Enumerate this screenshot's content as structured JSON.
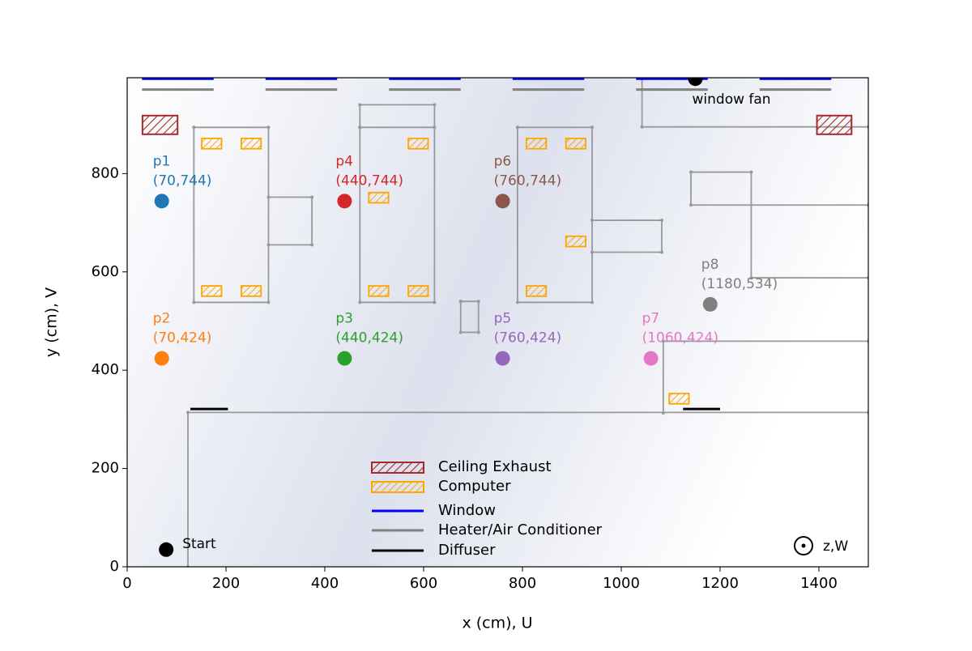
{
  "chart_data": {
    "type": "floorplan",
    "xlabel": "x (cm), U",
    "ylabel": "y (cm), V",
    "xlim": [
      0,
      1500
    ],
    "ylim": [
      0,
      995
    ],
    "xticks": [
      0,
      200,
      400,
      600,
      800,
      1000,
      1200,
      1400
    ],
    "yticks": [
      0,
      200,
      400,
      600,
      800
    ],
    "points": [
      {
        "name": "p1",
        "label": "(70,744)",
        "x": 70,
        "y": 744,
        "color": "#1f77b4"
      },
      {
        "name": "p2",
        "label": "(70,424)",
        "x": 70,
        "y": 424,
        "color": "#ff7f0e"
      },
      {
        "name": "p3",
        "label": "(440,424)",
        "x": 440,
        "y": 424,
        "color": "#2ca02c"
      },
      {
        "name": "p4",
        "label": "(440,744)",
        "x": 440,
        "y": 744,
        "color": "#d62728"
      },
      {
        "name": "p5",
        "label": "(760,424)",
        "x": 760,
        "y": 424,
        "color": "#9467bd"
      },
      {
        "name": "p6",
        "label": "(760,744)",
        "x": 760,
        "y": 744,
        "color": "#8c564b"
      },
      {
        "name": "p7",
        "label": "(1060,424)",
        "x": 1060,
        "y": 424,
        "color": "#e377c2"
      },
      {
        "name": "p8",
        "label": "(1180,534)",
        "x": 1180,
        "y": 534,
        "color": "#7f7f7f"
      }
    ],
    "start": {
      "label": "Start",
      "x": 79,
      "y": 35
    },
    "fan": {
      "label": "window fan",
      "x": 1150,
      "y": 993
    },
    "axis_note": "z,W",
    "exhausts": {
      "name": "Ceiling Exhaust",
      "color": "#a52a2a",
      "rects": [
        [
          31,
          102,
          880,
          918
        ],
        [
          1396,
          1466,
          880,
          918
        ]
      ]
    },
    "computers": {
      "name": "Computer",
      "color": "#ffa500",
      "w": 40,
      "h": 21,
      "x": [
        171,
        251,
        171,
        251,
        509,
        509,
        589,
        589,
        828,
        908,
        908,
        828,
        1117
      ],
      "y": [
        861,
        861,
        561,
        561,
        751,
        561,
        561,
        861,
        861,
        861,
        662,
        561,
        342
      ]
    },
    "windows": {
      "name": "Window",
      "color": "#0000ff",
      "y": 993,
      "segments": [
        [
          30,
          175
        ],
        [
          280,
          425
        ],
        [
          530,
          675
        ],
        [
          780,
          925
        ],
        [
          1030,
          1175
        ],
        [
          1280,
          1425
        ]
      ]
    },
    "heaters": {
      "name": "Heater/Air Conditioner",
      "color": "#808080",
      "y": 971,
      "segments": [
        [
          30,
          175
        ],
        [
          280,
          425
        ],
        [
          530,
          675
        ],
        [
          780,
          925
        ],
        [
          1030,
          1175
        ],
        [
          1280,
          1425
        ]
      ]
    },
    "diffusers": {
      "name": "Diffuser",
      "color": "#000000",
      "y": 321,
      "segments": [
        [
          128,
          204
        ],
        [
          1125,
          1200
        ]
      ]
    },
    "walls": {
      "color": "#999999",
      "lines": [
        {
          "x": [
            135,
            286,
            286,
            135,
            135
          ],
          "y": [
            894,
            894,
            538,
            538,
            894
          ]
        },
        {
          "x": [
            286,
            374,
            374,
            286
          ],
          "y": [
            752,
            752,
            655,
            655
          ]
        },
        {
          "x": [
            471,
            622,
            622,
            471,
            471
          ],
          "y": [
            894,
            894,
            538,
            538,
            894
          ]
        },
        {
          "x": [
            471,
            471,
            622,
            622
          ],
          "y": [
            894,
            940,
            940,
            894
          ]
        },
        {
          "x": [
            790,
            941,
            941,
            790,
            790
          ],
          "y": [
            894,
            894,
            538,
            538,
            894
          ]
        },
        {
          "x": [
            941,
            1082,
            1082,
            941
          ],
          "y": [
            705,
            705,
            640,
            640
          ]
        },
        {
          "x": [
            675,
            711,
            711,
            675,
            675
          ],
          "y": [
            540,
            540,
            477,
            477,
            540
          ]
        },
        {
          "x": [
            1042,
            1042,
            1500
          ],
          "y": [
            993,
            895,
            895
          ]
        },
        {
          "x": [
            1500,
            1141,
            1141,
            1263,
            1263,
            1500
          ],
          "y": [
            736,
            736,
            803,
            803,
            588,
            588
          ]
        },
        {
          "x": [
            1500,
            1085,
            1085
          ],
          "y": [
            459,
            459,
            313
          ]
        },
        {
          "x": [
            123,
            123,
            1500
          ],
          "y": [
            0,
            314,
            314
          ]
        }
      ]
    },
    "legend": "lower center"
  }
}
